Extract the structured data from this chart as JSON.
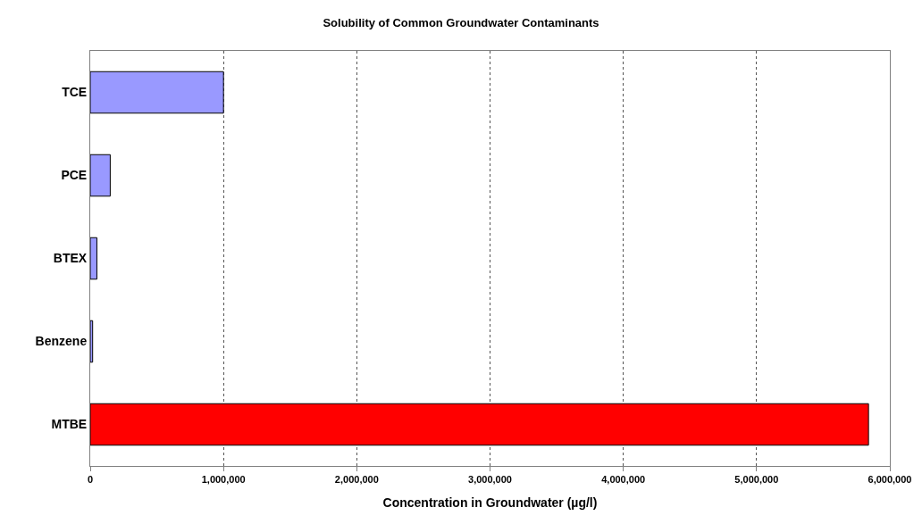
{
  "chart_data": {
    "type": "bar",
    "orientation": "horizontal",
    "title": "Solubility of Common Groundwater Contaminants",
    "xlabel": "Concentration in Groundwater (µg/l)",
    "categories": [
      "TCE",
      "PCE",
      "BTEX",
      "Benzene",
      "MTBE"
    ],
    "values": [
      1000000,
      150000,
      50000,
      18000,
      5840000
    ],
    "colors": [
      "#9999ff",
      "#9999ff",
      "#9999ff",
      "#9999ff",
      "#ff0000"
    ],
    "xlim": [
      0,
      6000000
    ],
    "xticks": [
      {
        "value": 0,
        "label": "0"
      },
      {
        "value": 1000000,
        "label": "1,000,000"
      },
      {
        "value": 2000000,
        "label": "2,000,000"
      },
      {
        "value": 3000000,
        "label": "3,000,000"
      },
      {
        "value": 4000000,
        "label": "4,000,000"
      },
      {
        "value": 5000000,
        "label": "5,000,000"
      },
      {
        "value": 6000000,
        "label": "6,000,000"
      }
    ],
    "grid": "x"
  }
}
